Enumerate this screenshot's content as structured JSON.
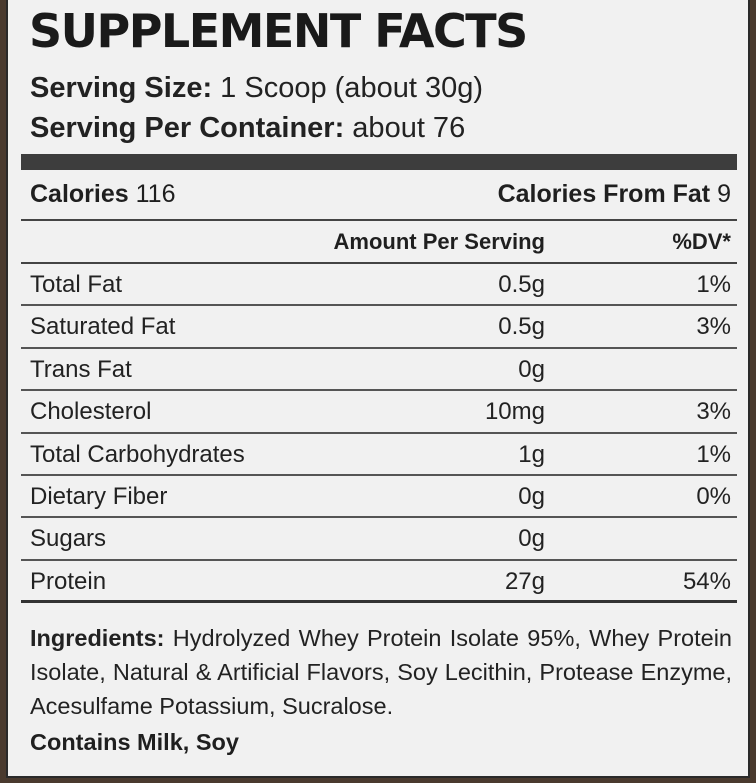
{
  "title": "SUPPLEMENT FACTS",
  "serving": {
    "size_label": "Serving Size:",
    "size_value": " 1 Scoop (about 30g)",
    "per_container_label": "Serving Per Container:",
    "per_container_value": " about 76"
  },
  "calories": {
    "label": "Calories",
    "value": " 116",
    "from_fat_label": "Calories From Fat",
    "from_fat_value": " 9"
  },
  "table": {
    "header_amount": "Amount Per Serving",
    "header_dv": "%DV*",
    "rows": [
      {
        "name": "Total Fat",
        "amount": "0.5g",
        "dv": "1%"
      },
      {
        "name": "Saturated Fat",
        "amount": "0.5g",
        "dv": "3%"
      },
      {
        "name": "Trans Fat",
        "amount": "0g",
        "dv": ""
      },
      {
        "name": "Cholesterol",
        "amount": "10mg",
        "dv": "3%"
      },
      {
        "name": "Total Carbohydrates",
        "amount": "1g",
        "dv": "1%"
      },
      {
        "name": "Dietary Fiber",
        "amount": "0g",
        "dv": "0%"
      },
      {
        "name": "Sugars",
        "amount": "0g",
        "dv": ""
      },
      {
        "name": "Protein",
        "amount": "27g",
        "dv": "54%"
      }
    ]
  },
  "ingredients": {
    "label": "Ingredients:",
    "text": " Hydrolyzed Whey Protein Isolate 95%, Whey Protein Isolate, Natural & Artificial Flavors, Soy Lecithin, Protease Enzyme, Acesulfame Potassium, Sucralose."
  },
  "allergens": "Contains Milk, Soy",
  "colors": {
    "label_background": "#f1f1f1",
    "bar": "#3d3d3d",
    "text": "#1f1f1f",
    "surround": "#4a3a2e"
  }
}
